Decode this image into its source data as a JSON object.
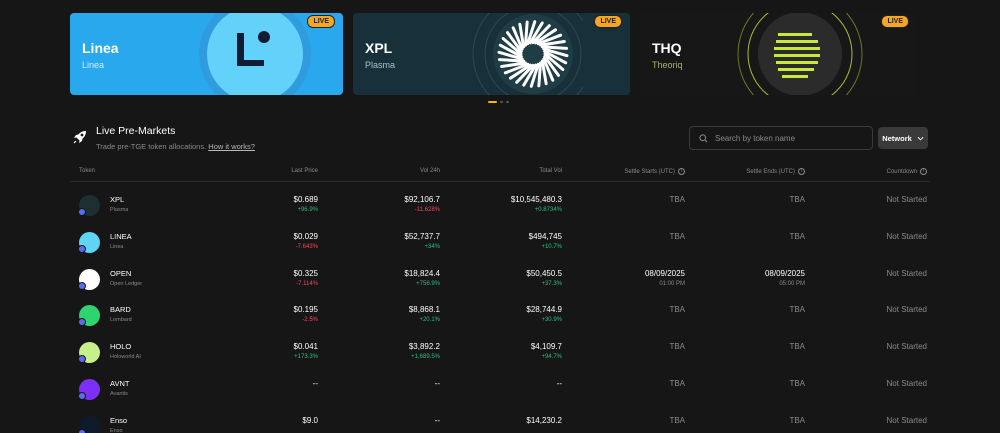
{
  "carousel": {
    "cards": [
      {
        "ticker": "Linea",
        "name": "Linea",
        "badge": "LIVE"
      },
      {
        "ticker": "XPL",
        "name": "Plasma",
        "badge": "LIVE"
      },
      {
        "ticker": "THQ",
        "name": "Theoriq",
        "badge": "LIVE"
      }
    ]
  },
  "section": {
    "title": "Live Pre-Markets",
    "subtitle": "Trade pre-TGE token allocations.",
    "link": "How it works?"
  },
  "search": {
    "placeholder": "Search by token name"
  },
  "network": {
    "label": "Network"
  },
  "table": {
    "headers": [
      "Token",
      "Last Price",
      "Vol 24h",
      "Total Vol",
      "Settle Starts (UTC)",
      "Settle Ends (UTC)",
      "Countdown"
    ],
    "rows": [
      {
        "symbol": "XPL",
        "name": "Plasma",
        "price": "$0.689",
        "price_change": "+96.9%",
        "vol24": "$92,106.7",
        "vol24_change": "-11.628%",
        "total": "$10,545,480.3",
        "total_change": "+0.8734%",
        "settle_start": "TBA",
        "settle_start_time": "",
        "settle_end": "TBA",
        "settle_end_time": "",
        "countdown": "Not Started",
        "icon_bg": "#1d2f33"
      },
      {
        "symbol": "LINEA",
        "name": "Linea",
        "price": "$0.029",
        "price_change": "-7.643%",
        "vol24": "$52,737.7",
        "vol24_change": "+34%",
        "total": "$494,745",
        "total_change": "+10.7%",
        "settle_start": "TBA",
        "settle_start_time": "",
        "settle_end": "TBA",
        "settle_end_time": "",
        "countdown": "Not Started",
        "icon_bg": "#5fd4f5"
      },
      {
        "symbol": "OPEN",
        "name": "Open Ledger",
        "price": "$0.325",
        "price_change": "-7.114%",
        "vol24": "$18,824.4",
        "vol24_change": "+756.9%",
        "total": "$50,450.5",
        "total_change": "+37.3%",
        "settle_start": "08/09/2025",
        "settle_start_time": "01:00 PM",
        "settle_end": "08/09/2025",
        "settle_end_time": "05:00 PM",
        "countdown": "Not Started",
        "icon_bg": "#ffffff"
      },
      {
        "symbol": "BARD",
        "name": "Lombard",
        "price": "$0.195",
        "price_change": "-2.5%",
        "vol24": "$8,868.1",
        "vol24_change": "+20.1%",
        "total": "$28,744.9",
        "total_change": "+30.9%",
        "settle_start": "TBA",
        "settle_start_time": "",
        "settle_end": "TBA",
        "settle_end_time": "",
        "countdown": "Not Started",
        "icon_bg": "#2dd46f"
      },
      {
        "symbol": "HOLO",
        "name": "Holoworld AI",
        "price": "$0.041",
        "price_change": "+173.3%",
        "vol24": "$3,892.2",
        "vol24_change": "+1,689.5%",
        "total": "$4,109.7",
        "total_change": "+94.7%",
        "settle_start": "TBA",
        "settle_start_time": "",
        "settle_end": "TBA",
        "settle_end_time": "",
        "countdown": "Not Started",
        "icon_bg": "#c7f08a"
      },
      {
        "symbol": "AVNT",
        "name": "Avantis",
        "price": "--",
        "price_change": "",
        "vol24": "--",
        "vol24_change": "",
        "total": "--",
        "total_change": "",
        "settle_start": "TBA",
        "settle_start_time": "",
        "settle_end": "TBA",
        "settle_end_time": "",
        "countdown": "Not Started",
        "icon_bg": "#7b2ff7"
      },
      {
        "symbol": "Enso",
        "name": "Enso",
        "price": "$9.0",
        "price_change": "",
        "vol24": "--",
        "vol24_change": "",
        "total": "$14,230.2",
        "total_change": "",
        "settle_start": "TBA",
        "settle_start_time": "",
        "settle_end": "TBA",
        "settle_end_time": "",
        "countdown": "Not Started",
        "icon_bg": "#0d1a2b"
      }
    ]
  },
  "colors": {
    "accent": "#f0b90b",
    "up": "#2ebd85",
    "down": "#f6465d",
    "background": "#161616"
  }
}
